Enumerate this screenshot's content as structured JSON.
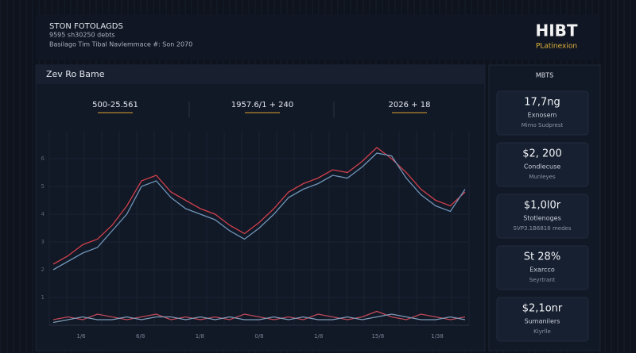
{
  "header": {
    "title": "STON FOTOLAGDS",
    "subtitle": "9595 sh30250 debts",
    "caption": "Basilago Tim Tibal Navlemmace #: Son 2070",
    "logo": "HIBT",
    "logo_sub": "PLatinexion"
  },
  "panel": {
    "title": "Zev Ro Bame",
    "stats": [
      "500-25.561",
      "1957.6/1 + 240",
      "2026 + 18"
    ]
  },
  "chart": {
    "type": "line",
    "ylim": [
      0,
      7
    ],
    "yticks": [
      1,
      2,
      3,
      4,
      5,
      6
    ],
    "x_labels": [
      "1/6",
      "6/8",
      "1/8",
      "0/8",
      "1/8",
      "15/8",
      "1/38"
    ],
    "series": [
      {
        "color": "#d0404c",
        "values": [
          2.2,
          2.5,
          2.9,
          3.1,
          3.6,
          4.3,
          5.2,
          5.4,
          4.8,
          4.5,
          4.2,
          4.0,
          3.6,
          3.3,
          3.7,
          4.2,
          4.8,
          5.1,
          5.3,
          5.6,
          5.5,
          5.9,
          6.4,
          6.0,
          5.5,
          4.9,
          4.5,
          4.3,
          4.8
        ]
      },
      {
        "color": "#6f95b8",
        "values": [
          2.0,
          2.3,
          2.6,
          2.8,
          3.4,
          4.0,
          5.0,
          5.2,
          4.6,
          4.2,
          4.0,
          3.8,
          3.4,
          3.1,
          3.5,
          4.0,
          4.6,
          4.9,
          5.1,
          5.4,
          5.3,
          5.7,
          6.2,
          6.1,
          5.3,
          4.7,
          4.3,
          4.1,
          4.9
        ]
      },
      {
        "color": "#c04a5a",
        "values": [
          0.2,
          0.3,
          0.2,
          0.4,
          0.3,
          0.2,
          0.3,
          0.4,
          0.2,
          0.3,
          0.2,
          0.3,
          0.2,
          0.4,
          0.3,
          0.2,
          0.3,
          0.2,
          0.4,
          0.3,
          0.2,
          0.3,
          0.5,
          0.3,
          0.2,
          0.4,
          0.3,
          0.2,
          0.3
        ]
      },
      {
        "color": "#7f9cb8",
        "values": [
          0.1,
          0.2,
          0.3,
          0.2,
          0.2,
          0.3,
          0.2,
          0.3,
          0.3,
          0.2,
          0.3,
          0.2,
          0.3,
          0.2,
          0.2,
          0.3,
          0.2,
          0.3,
          0.2,
          0.2,
          0.3,
          0.2,
          0.3,
          0.4,
          0.3,
          0.2,
          0.2,
          0.3,
          0.2
        ]
      }
    ]
  },
  "sidebar": {
    "title": "MBTS",
    "cards": [
      {
        "value": "17,7ng",
        "label": "Exnosem",
        "note": "Mimo Sudprest"
      },
      {
        "value": "$2, 200",
        "label": "Condlecuse",
        "note": "Munleyes"
      },
      {
        "value": "$1,0l0r",
        "label": "Stotlenoges",
        "note": "SVP3.1B6816 medes"
      },
      {
        "value": "St 28%",
        "label": "Exarcco",
        "note": "Seyrtrant"
      },
      {
        "value": "$2,1onr",
        "label": "Sumanilers",
        "note": "Kiyrlle"
      }
    ]
  }
}
